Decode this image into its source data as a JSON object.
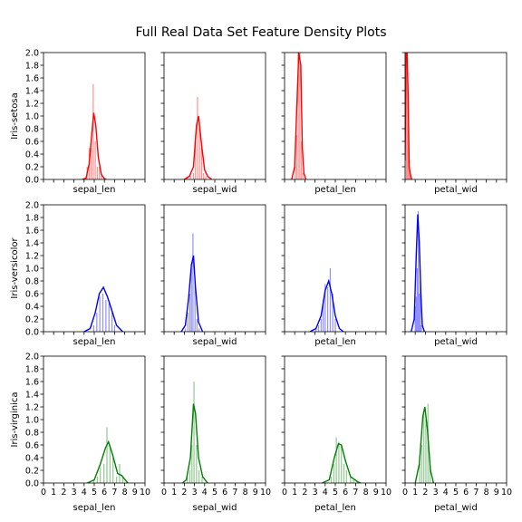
{
  "chart_data": {
    "type": "histogram-kde-grid",
    "title": "Full Real Data Set Feature Density Plots",
    "features": [
      "sepal_len",
      "sepal_wid",
      "petal_len",
      "petal_wid"
    ],
    "x_range": [
      0,
      10
    ],
    "x_ticks": [
      "0",
      "1",
      "2",
      "3",
      "4",
      "5",
      "6",
      "7",
      "8",
      "9",
      "10"
    ],
    "y_range": [
      0,
      2.0
    ],
    "y_ticks": [
      "0.0",
      "0.2",
      "0.4",
      "0.6",
      "0.8",
      "1.0",
      "1.2",
      "1.4",
      "1.6",
      "1.8",
      "2.0"
    ],
    "grid": false,
    "legend": "none",
    "rows": [
      {
        "species": "Iris-setosa",
        "color": "#ff0000",
        "panels": [
          {
            "feature": "sepal_len",
            "bars": [
              [
                4.3,
                0.2
              ],
              [
                4.5,
                0.5
              ],
              [
                4.7,
                0.5
              ],
              [
                4.9,
                1.5
              ],
              [
                5.1,
                0.6
              ],
              [
                5.3,
                0.2
              ],
              [
                5.5,
                0.2
              ],
              [
                5.7,
                0.1
              ]
            ],
            "kde": [
              [
                3.8,
                0
              ],
              [
                4.2,
                0.02
              ],
              [
                4.5,
                0.25
              ],
              [
                4.75,
                0.7
              ],
              [
                4.95,
                1.05
              ],
              [
                5.15,
                0.85
              ],
              [
                5.4,
                0.35
              ],
              [
                5.7,
                0.08
              ],
              [
                6.0,
                0.01
              ],
              [
                6.2,
                0
              ]
            ]
          },
          {
            "feature": "sepal_wid",
            "bars": [
              [
                2.3,
                0.05
              ],
              [
                2.6,
                0.08
              ],
              [
                2.9,
                0.1
              ],
              [
                3.1,
                0.7
              ],
              [
                3.3,
                1.3
              ],
              [
                3.5,
                0.8
              ],
              [
                3.7,
                0.5
              ],
              [
                3.9,
                0.1
              ],
              [
                4.1,
                0.05
              ]
            ],
            "kde": [
              [
                2.0,
                0
              ],
              [
                2.5,
                0.05
              ],
              [
                2.9,
                0.2
              ],
              [
                3.2,
                0.85
              ],
              [
                3.4,
                1.0
              ],
              [
                3.7,
                0.55
              ],
              [
                4.0,
                0.15
              ],
              [
                4.3,
                0.05
              ],
              [
                4.7,
                0
              ]
            ]
          },
          {
            "feature": "petal_len",
            "bars": [
              [
                1.05,
                0.2
              ],
              [
                1.2,
                0.7
              ],
              [
                1.35,
                2.0
              ],
              [
                1.5,
                2.0
              ],
              [
                1.65,
                0.6
              ],
              [
                1.8,
                0.1
              ]
            ],
            "kde": [
              [
                0.7,
                0
              ],
              [
                1.0,
                0.2
              ],
              [
                1.2,
                1.1
              ],
              [
                1.4,
                2.0
              ],
              [
                1.6,
                1.8
              ],
              [
                1.75,
                0.5
              ],
              [
                1.9,
                0.1
              ],
              [
                2.1,
                0
              ]
            ]
          },
          {
            "feature": "petal_wid",
            "bars": [
              [
                0.12,
                2.0
              ],
              [
                0.22,
                2.0
              ],
              [
                0.32,
                0.9
              ],
              [
                0.42,
                0.3
              ],
              [
                0.52,
                0.1
              ]
            ],
            "kde": [
              [
                0.0,
                0.3
              ],
              [
                0.1,
                2.0
              ],
              [
                0.2,
                2.0
              ],
              [
                0.3,
                1.3
              ],
              [
                0.4,
                0.2
              ],
              [
                0.5,
                0.1
              ],
              [
                0.65,
                0
              ]
            ]
          }
        ]
      },
      {
        "species": "Iris-versicolor",
        "color": "#0000ff",
        "panels": [
          {
            "feature": "sepal_len",
            "bars": [
              [
                4.95,
                0.1
              ],
              [
                5.25,
                0.3
              ],
              [
                5.55,
                0.55
              ],
              [
                5.85,
                0.6
              ],
              [
                6.15,
                0.5
              ],
              [
                6.45,
                0.45
              ],
              [
                6.75,
                0.3
              ],
              [
                7.0,
                0.1
              ]
            ],
            "kde": [
              [
                4.0,
                0
              ],
              [
                4.6,
                0.05
              ],
              [
                5.1,
                0.3
              ],
              [
                5.5,
                0.6
              ],
              [
                5.9,
                0.7
              ],
              [
                6.3,
                0.55
              ],
              [
                6.8,
                0.3
              ],
              [
                7.2,
                0.1
              ],
              [
                7.8,
                0
              ]
            ]
          },
          {
            "feature": "sepal_wid",
            "bars": [
              [
                2.1,
                0.05
              ],
              [
                2.35,
                0.3
              ],
              [
                2.55,
                0.6
              ],
              [
                2.7,
                1.0
              ],
              [
                2.85,
                1.55
              ],
              [
                3.05,
                0.8
              ],
              [
                3.25,
                0.2
              ],
              [
                3.45,
                0.05
              ]
            ],
            "kde": [
              [
                1.7,
                0
              ],
              [
                2.1,
                0.1
              ],
              [
                2.4,
                0.5
              ],
              [
                2.7,
                1.05
              ],
              [
                2.9,
                1.2
              ],
              [
                3.1,
                0.7
              ],
              [
                3.4,
                0.15
              ],
              [
                3.8,
                0
              ]
            ]
          },
          {
            "feature": "petal_len",
            "bars": [
              [
                3.1,
                0.05
              ],
              [
                3.35,
                0.1
              ],
              [
                3.6,
                0.2
              ],
              [
                3.8,
                0.5
              ],
              [
                4.0,
                0.75
              ],
              [
                4.25,
                0.7
              ],
              [
                4.5,
                1.0
              ],
              [
                4.75,
                0.6
              ],
              [
                5.0,
                0.2
              ]
            ],
            "kde": [
              [
                2.5,
                0
              ],
              [
                3.1,
                0.05
              ],
              [
                3.6,
                0.25
              ],
              [
                4.0,
                0.65
              ],
              [
                4.35,
                0.8
              ],
              [
                4.65,
                0.6
              ],
              [
                5.0,
                0.25
              ],
              [
                5.4,
                0.05
              ],
              [
                5.8,
                0
              ]
            ]
          },
          {
            "feature": "petal_wid",
            "bars": [
              [
                1.0,
                0.4
              ],
              [
                1.1,
                0.55
              ],
              [
                1.2,
                1.0
              ],
              [
                1.3,
                1.9
              ],
              [
                1.4,
                0.6
              ],
              [
                1.5,
                0.8
              ],
              [
                1.6,
                0.1
              ]
            ],
            "kde": [
              [
                0.6,
                0
              ],
              [
                0.9,
                0.2
              ],
              [
                1.1,
                1.2
              ],
              [
                1.25,
                1.85
              ],
              [
                1.4,
                1.4
              ],
              [
                1.55,
                0.6
              ],
              [
                1.7,
                0.1
              ],
              [
                1.9,
                0
              ]
            ]
          }
        ]
      },
      {
        "species": "Iris-virginica",
        "color": "#008000",
        "panels": [
          {
            "feature": "sepal_len",
            "bars": [
              [
                4.95,
                0.05
              ],
              [
                5.3,
                0.1
              ],
              [
                5.6,
                0.25
              ],
              [
                5.95,
                0.3
              ],
              [
                6.25,
                0.88
              ],
              [
                6.55,
                0.6
              ],
              [
                6.85,
                0.4
              ],
              [
                7.2,
                0.1
              ],
              [
                7.5,
                0.3
              ],
              [
                7.8,
                0.1
              ]
            ],
            "kde": [
              [
                4.3,
                0
              ],
              [
                5.0,
                0.05
              ],
              [
                5.6,
                0.3
              ],
              [
                6.1,
                0.55
              ],
              [
                6.4,
                0.65
              ],
              [
                6.8,
                0.45
              ],
              [
                7.3,
                0.15
              ],
              [
                7.7,
                0.12
              ],
              [
                8.3,
                0
              ]
            ]
          },
          {
            "feature": "sepal_wid",
            "bars": [
              [
                2.3,
                0.1
              ],
              [
                2.55,
                0.2
              ],
              [
                2.75,
                0.6
              ],
              [
                2.95,
                1.6
              ],
              [
                3.2,
                0.6
              ],
              [
                3.45,
                0.2
              ],
              [
                3.75,
                0.1
              ]
            ],
            "kde": [
              [
                1.8,
                0
              ],
              [
                2.2,
                0.05
              ],
              [
                2.6,
                0.4
              ],
              [
                2.9,
                1.25
              ],
              [
                3.1,
                1.1
              ],
              [
                3.4,
                0.4
              ],
              [
                3.8,
                0.1
              ],
              [
                4.3,
                0
              ]
            ]
          },
          {
            "feature": "petal_len",
            "bars": [
              [
                4.6,
                0.1
              ],
              [
                4.85,
                0.3
              ],
              [
                5.1,
                0.72
              ],
              [
                5.35,
                0.65
              ],
              [
                5.6,
                0.6
              ],
              [
                5.85,
                0.3
              ],
              [
                6.1,
                0.2
              ],
              [
                6.5,
                0.1
              ],
              [
                6.8,
                0.05
              ]
            ],
            "kde": [
              [
                3.7,
                0
              ],
              [
                4.4,
                0.05
              ],
              [
                4.9,
                0.4
              ],
              [
                5.3,
                0.62
              ],
              [
                5.6,
                0.6
              ],
              [
                6.0,
                0.35
              ],
              [
                6.5,
                0.1
              ],
              [
                7.2,
                0.02
              ],
              [
                7.5,
                0
              ]
            ]
          },
          {
            "feature": "petal_wid",
            "bars": [
              [
                1.45,
                0.3
              ],
              [
                1.65,
                0.6
              ],
              [
                1.85,
                1.1
              ],
              [
                2.05,
                1.0
              ],
              [
                2.25,
                1.25
              ],
              [
                2.45,
                0.3
              ]
            ],
            "kde": [
              [
                1.0,
                0
              ],
              [
                1.4,
                0.3
              ],
              [
                1.75,
                1.05
              ],
              [
                1.95,
                1.2
              ],
              [
                2.2,
                0.85
              ],
              [
                2.5,
                0.2
              ],
              [
                2.8,
                0
              ]
            ]
          }
        ]
      }
    ]
  }
}
